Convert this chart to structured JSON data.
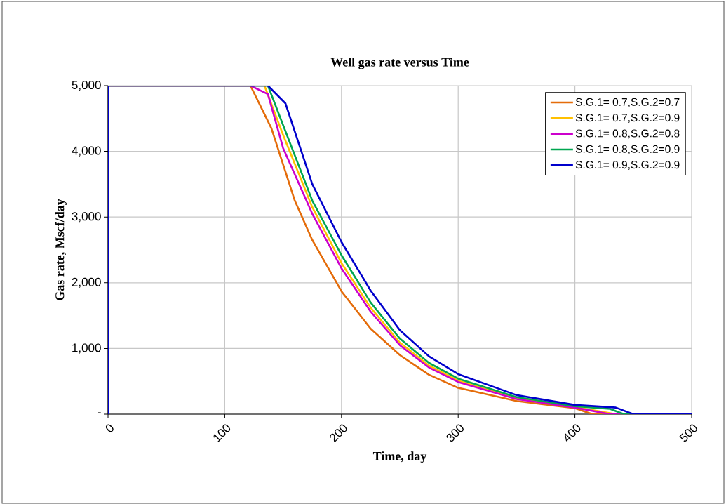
{
  "chart_data": {
    "type": "line",
    "title": "Well gas rate versus Time",
    "xlabel": "Time, day",
    "ylabel": "Gas rate, Mscf/day",
    "xlim": [
      0,
      500
    ],
    "xticks": [
      0,
      100,
      200,
      300,
      400,
      500
    ],
    "ylim": [
      0,
      5000
    ],
    "yticks": [
      {
        "value": 0,
        "label": "-"
      },
      {
        "value": 1000,
        "label": "1,000"
      },
      {
        "value": 2000,
        "label": "2,000"
      },
      {
        "value": 3000,
        "label": "3,000"
      },
      {
        "value": 4000,
        "label": "4,000"
      },
      {
        "value": 5000,
        "label": "5,000"
      }
    ],
    "grid": true,
    "legend": "top right",
    "marker": "none",
    "line_style": "solid",
    "series": [
      {
        "name": "S.G.1= 0.7,S.G.2=0.7",
        "color": "#e46c0a",
        "x": [
          0,
          122,
          140,
          160,
          175,
          200,
          225,
          250,
          275,
          300,
          350,
          400,
          415,
          500
        ],
        "values": [
          5000,
          5000,
          4350,
          3250,
          2650,
          1870,
          1300,
          900,
          600,
          400,
          200,
          90,
          0,
          0
        ]
      },
      {
        "name": "S.G.1= 0.7,S.G.2=0.9",
        "color": "#ffc000",
        "x": [
          0,
          134,
          150,
          175,
          200,
          225,
          250,
          275,
          300,
          350,
          400,
          435,
          500
        ],
        "values": [
          5000,
          5000,
          4250,
          3150,
          2300,
          1620,
          1090,
          740,
          510,
          240,
          110,
          0,
          0
        ]
      },
      {
        "name": "S.G.1= 0.8,S.G.2=0.8",
        "color": "#cc00cc",
        "x": [
          0,
          122,
          137,
          150,
          175,
          200,
          225,
          250,
          275,
          300,
          350,
          400,
          430,
          500
        ],
        "values": [
          5000,
          5000,
          4870,
          4050,
          3050,
          2220,
          1560,
          1050,
          710,
          490,
          230,
          100,
          0,
          0
        ]
      },
      {
        "name": "S.G.1= 0.8,S.G.2=0.9",
        "color": "#00a650",
        "x": [
          0,
          137,
          150,
          175,
          200,
          225,
          250,
          275,
          300,
          350,
          400,
          430,
          442,
          500
        ],
        "values": [
          5000,
          5000,
          4400,
          3250,
          2420,
          1700,
          1150,
          780,
          540,
          260,
          120,
          80,
          0,
          0
        ]
      },
      {
        "name": "S.G.1= 0.9,S.G.2=0.9",
        "color": "#0000cc",
        "x": [
          0,
          0,
          137,
          152,
          175,
          200,
          225,
          250,
          275,
          300,
          350,
          400,
          435,
          450,
          500
        ],
        "values": [
          0,
          5000,
          5000,
          4730,
          3500,
          2620,
          1880,
          1280,
          880,
          610,
          290,
          140,
          100,
          0,
          0
        ]
      }
    ]
  }
}
